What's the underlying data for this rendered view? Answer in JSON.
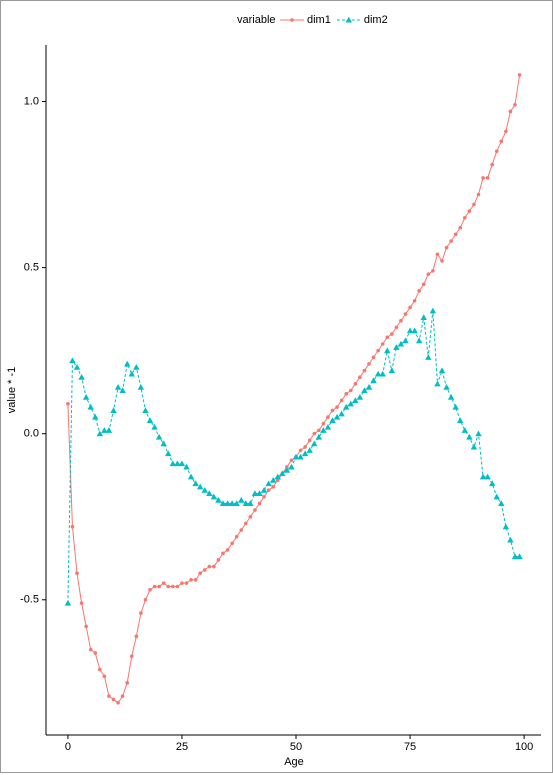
{
  "chart_data": {
    "type": "line",
    "legend_title": "variable",
    "legend_position": "top",
    "xlabel": "Age",
    "ylabel": "value * -1",
    "x": [
      0,
      1,
      2,
      3,
      4,
      5,
      6,
      7,
      8,
      9,
      10,
      11,
      12,
      13,
      14,
      15,
      16,
      17,
      18,
      19,
      20,
      21,
      22,
      23,
      24,
      25,
      26,
      27,
      28,
      29,
      30,
      31,
      32,
      33,
      34,
      35,
      36,
      37,
      38,
      39,
      40,
      41,
      42,
      43,
      44,
      45,
      46,
      47,
      48,
      49,
      50,
      51,
      52,
      53,
      54,
      55,
      56,
      57,
      58,
      59,
      60,
      61,
      62,
      63,
      64,
      65,
      66,
      67,
      68,
      69,
      70,
      71,
      72,
      73,
      74,
      75,
      76,
      77,
      78,
      79,
      80,
      81,
      82,
      83,
      84,
      85,
      86,
      87,
      88,
      89,
      90,
      91,
      92,
      93,
      94,
      95,
      96,
      97,
      98,
      99
    ],
    "series": [
      {
        "name": "dim1",
        "color": "#F8766D",
        "linestyle": "solid",
        "marker": "circle",
        "values": [
          0.09,
          -0.28,
          -0.42,
          -0.51,
          -0.58,
          -0.65,
          -0.66,
          -0.71,
          -0.73,
          -0.79,
          -0.8,
          -0.81,
          -0.79,
          -0.75,
          -0.67,
          -0.61,
          -0.54,
          -0.5,
          -0.47,
          -0.46,
          -0.46,
          -0.45,
          -0.46,
          -0.46,
          -0.46,
          -0.45,
          -0.45,
          -0.44,
          -0.44,
          -0.42,
          -0.41,
          -0.4,
          -0.4,
          -0.38,
          -0.36,
          -0.35,
          -0.33,
          -0.31,
          -0.29,
          -0.27,
          -0.25,
          -0.23,
          -0.21,
          -0.19,
          -0.17,
          -0.16,
          -0.14,
          -0.12,
          -0.1,
          -0.08,
          -0.07,
          -0.05,
          -0.04,
          -0.02,
          0.0,
          0.01,
          0.03,
          0.05,
          0.07,
          0.08,
          0.1,
          0.12,
          0.13,
          0.15,
          0.17,
          0.19,
          0.21,
          0.23,
          0.25,
          0.27,
          0.29,
          0.3,
          0.32,
          0.34,
          0.36,
          0.38,
          0.4,
          0.43,
          0.45,
          0.48,
          0.49,
          0.54,
          0.52,
          0.56,
          0.58,
          0.6,
          0.62,
          0.65,
          0.67,
          0.69,
          0.72,
          0.77,
          0.77,
          0.81,
          0.85,
          0.88,
          0.91,
          0.97,
          0.99,
          1.08
        ]
      },
      {
        "name": "dim2",
        "color": "#00BFC4",
        "linestyle": "dashed",
        "marker": "triangle",
        "values": [
          -0.51,
          0.22,
          0.2,
          0.17,
          0.11,
          0.08,
          0.05,
          0.0,
          0.01,
          0.01,
          0.07,
          0.14,
          0.13,
          0.21,
          0.18,
          0.2,
          0.14,
          0.07,
          0.04,
          0.02,
          -0.01,
          -0.03,
          -0.06,
          -0.09,
          -0.09,
          -0.09,
          -0.1,
          -0.13,
          -0.15,
          -0.16,
          -0.17,
          -0.18,
          -0.19,
          -0.2,
          -0.21,
          -0.21,
          -0.21,
          -0.21,
          -0.2,
          -0.21,
          -0.21,
          -0.18,
          -0.18,
          -0.17,
          -0.15,
          -0.14,
          -0.13,
          -0.12,
          -0.11,
          -0.1,
          -0.07,
          -0.07,
          -0.06,
          -0.05,
          -0.03,
          -0.01,
          0.01,
          0.02,
          0.04,
          0.05,
          0.06,
          0.08,
          0.09,
          0.1,
          0.11,
          0.13,
          0.14,
          0.16,
          0.18,
          0.18,
          0.25,
          0.19,
          0.26,
          0.27,
          0.28,
          0.31,
          0.31,
          0.28,
          0.35,
          0.23,
          0.37,
          0.15,
          0.19,
          0.14,
          0.11,
          0.08,
          0.04,
          0.01,
          -0.01,
          -0.04,
          0.0,
          -0.13,
          -0.13,
          -0.15,
          -0.19,
          -0.21,
          -0.28,
          -0.32,
          -0.37,
          -0.37
        ]
      }
    ],
    "xlim": [
      -4.8,
      103.7
    ],
    "ylim": [
      -0.907,
      1.17
    ],
    "xticks": [
      0,
      25,
      50,
      75,
      100
    ],
    "yticks": [
      {
        "value": -0.5,
        "label": "-0.5"
      },
      {
        "value": 0,
        "label": "0.0"
      },
      {
        "value": 0.5,
        "label": "0.5"
      },
      {
        "value": 1,
        "label": "1.0"
      }
    ],
    "grid": false
  }
}
